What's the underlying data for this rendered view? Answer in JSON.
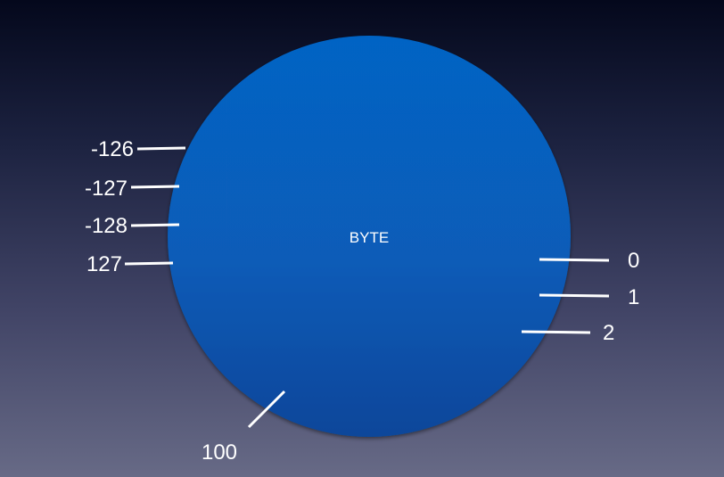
{
  "diagram": {
    "center_label": "BYTE",
    "circle_color": "#0660c0",
    "circle_color_dark": "#07469a",
    "line_color": "#ffffff",
    "labels": {
      "neg126": "-126",
      "neg127": "-127",
      "neg128": "-128",
      "pos127": "127",
      "zero": "0",
      "one": "1",
      "two": "2",
      "hundred": "100"
    }
  }
}
